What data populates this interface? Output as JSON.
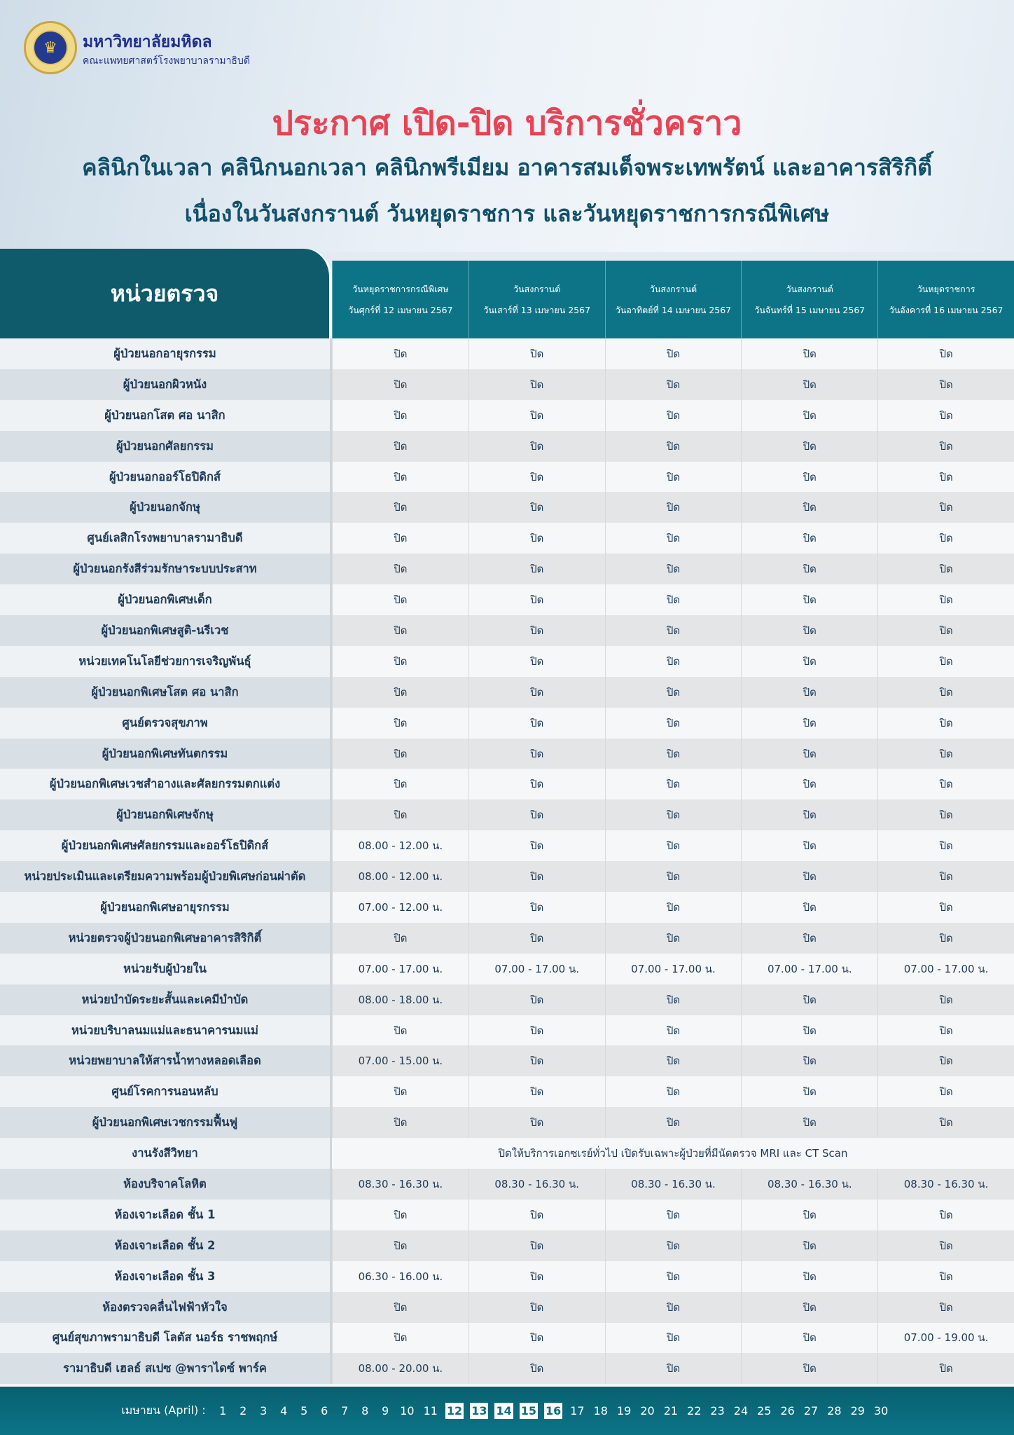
{
  "header": {
    "logo_text": "มหาวิทยาลัยมหิดล",
    "org_name": "มหาวิทยาลัยมหิดล",
    "faculty": "คณะแพทยศาสตร์โรงพยาบาลรามาธิบดี",
    "title": "ประกาศ เปิด-ปิด บริการชั่วคราว",
    "subtitle1": "คลินิกในเวลา คลินิกนอกเวลา คลินิกพรีเมียม อาคารสมเด็จพระเทพรัตน์ และอาคารสิริกิติ์",
    "subtitle2": "เนื่องในวันสงกรานต์ วันหยุดราชการ และวันหยุดราชการกรณีพิเศษ"
  },
  "colors": {
    "title": "#e84354",
    "subtitle": "#12506a",
    "header_dark": "#0f5a6b",
    "header_teal": "#0d7487",
    "footer": "#0b7487"
  },
  "table": {
    "unit_header": "หน่วยตรวจ",
    "columns": [
      {
        "type": "วันหยุดราชการกรณีพิเศษ",
        "date": "วันศุกร์ที่ 12 เมษายน 2567"
      },
      {
        "type": "วันสงกรานต์",
        "date": "วันเสาร์ที่ 13 เมษายน 2567"
      },
      {
        "type": "วันสงกรานต์",
        "date": "วันอาทิตย์ที่ 14 เมษายน 2567"
      },
      {
        "type": "วันสงกรานต์",
        "date": "วันจันทร์ที่ 15 เมษายน 2567"
      },
      {
        "type": "วันหยุดราชการ",
        "date": "วันอังคารที่ 16 เมษายน 2567"
      }
    ],
    "rows": [
      {
        "name": "ผู้ป่วยนอกอายุรกรรม",
        "values": [
          "ปิด",
          "ปิด",
          "ปิด",
          "ปิด",
          "ปิด"
        ]
      },
      {
        "name": "ผู้ป่วยนอกผิวหนัง",
        "values": [
          "ปิด",
          "ปิด",
          "ปิด",
          "ปิด",
          "ปิด"
        ]
      },
      {
        "name": "ผู้ป่วยนอกโสต ศอ นาสิก",
        "values": [
          "ปิด",
          "ปิด",
          "ปิด",
          "ปิด",
          "ปิด"
        ]
      },
      {
        "name": "ผู้ป่วยนอกศัลยกรรม",
        "values": [
          "ปิด",
          "ปิด",
          "ปิด",
          "ปิด",
          "ปิด"
        ]
      },
      {
        "name": "ผู้ป่วยนอกออร์โธปิดิกส์",
        "values": [
          "ปิด",
          "ปิด",
          "ปิด",
          "ปิด",
          "ปิด"
        ]
      },
      {
        "name": "ผู้ป่วยนอกจักษุ",
        "values": [
          "ปิด",
          "ปิด",
          "ปิด",
          "ปิด",
          "ปิด"
        ]
      },
      {
        "name": "ศูนย์เลสิกโรงพยาบาลรามาธิบดี",
        "values": [
          "ปิด",
          "ปิด",
          "ปิด",
          "ปิด",
          "ปิด"
        ]
      },
      {
        "name": "ผู้ป่วยนอกรังสีร่วมรักษาระบบประสาท",
        "values": [
          "ปิด",
          "ปิด",
          "ปิด",
          "ปิด",
          "ปิด"
        ]
      },
      {
        "name": "ผู้ป่วยนอกพิเศษเด็ก",
        "values": [
          "ปิด",
          "ปิด",
          "ปิด",
          "ปิด",
          "ปิด"
        ]
      },
      {
        "name": "ผู้ป่วยนอกพิเศษสูติ-นรีเวช",
        "values": [
          "ปิด",
          "ปิด",
          "ปิด",
          "ปิด",
          "ปิด"
        ]
      },
      {
        "name": "หน่วยเทคโนโลยีช่วยการเจริญพันธุ์",
        "values": [
          "ปิด",
          "ปิด",
          "ปิด",
          "ปิด",
          "ปิด"
        ]
      },
      {
        "name": "ผู้ป่วยนอกพิเศษโสต ศอ นาสิก",
        "values": [
          "ปิด",
          "ปิด",
          "ปิด",
          "ปิด",
          "ปิด"
        ]
      },
      {
        "name": "ศูนย์ตรวจสุขภาพ",
        "values": [
          "ปิด",
          "ปิด",
          "ปิด",
          "ปิด",
          "ปิด"
        ]
      },
      {
        "name": "ผู้ป่วยนอกพิเศษทันตกรรม",
        "values": [
          "ปิด",
          "ปิด",
          "ปิด",
          "ปิด",
          "ปิด"
        ]
      },
      {
        "name": "ผู้ป่วยนอกพิเศษเวชสำอางและศัลยกรรมตกแต่ง",
        "values": [
          "ปิด",
          "ปิด",
          "ปิด",
          "ปิด",
          "ปิด"
        ]
      },
      {
        "name": "ผู้ป่วยนอกพิเศษจักษุ",
        "values": [
          "ปิด",
          "ปิด",
          "ปิด",
          "ปิด",
          "ปิด"
        ]
      },
      {
        "name": "ผู้ป่วยนอกพิเศษศัลยกรรมและออร์โธปิดิกส์",
        "values": [
          "08.00 - 12.00 น.",
          "ปิด",
          "ปิด",
          "ปิด",
          "ปิด"
        ]
      },
      {
        "name": "หน่วยประเมินและเตรียมความพร้อมผู้ป่วยพิเศษก่อนผ่าตัด",
        "values": [
          "08.00 - 12.00 น.",
          "ปิด",
          "ปิด",
          "ปิด",
          "ปิด"
        ]
      },
      {
        "name": "ผู้ป่วยนอกพิเศษอายุรกรรม",
        "values": [
          "07.00 - 12.00 น.",
          "ปิด",
          "ปิด",
          "ปิด",
          "ปิด"
        ]
      },
      {
        "name": "หน่วยตรวจผู้ป่วยนอกพิเศษอาคารสิริกิติ์",
        "values": [
          "ปิด",
          "ปิด",
          "ปิด",
          "ปิด",
          "ปิด"
        ]
      },
      {
        "name": "หน่วยรับผู้ป่วยใน",
        "values": [
          "07.00 - 17.00 น.",
          "07.00 - 17.00 น.",
          "07.00 - 17.00 น.",
          "07.00 - 17.00 น.",
          "07.00 - 17.00 น."
        ]
      },
      {
        "name": "หน่วยบำบัดระยะสั้นและเคมีบำบัด",
        "values": [
          "08.00 - 18.00 น.",
          "ปิด",
          "ปิด",
          "ปิด",
          "ปิด"
        ]
      },
      {
        "name": "หน่วยบริบาลนมแม่และธนาคารนมแม่",
        "values": [
          "ปิด",
          "ปิด",
          "ปิด",
          "ปิด",
          "ปิด"
        ]
      },
      {
        "name": "หน่วยพยาบาลให้สารน้ำทางหลอดเลือด",
        "values": [
          "07.00 - 15.00 น.",
          "ปิด",
          "ปิด",
          "ปิด",
          "ปิด"
        ]
      },
      {
        "name": "ศูนย์โรคการนอนหลับ",
        "values": [
          "ปิด",
          "ปิด",
          "ปิด",
          "ปิด",
          "ปิด"
        ]
      },
      {
        "name": "ผู้ป่วยนอกพิเศษเวชกรรมฟื้นฟู",
        "values": [
          "ปิด",
          "ปิด",
          "ปิด",
          "ปิด",
          "ปิด"
        ]
      },
      {
        "name": "งานรังสีวิทยา",
        "span": "ปิดให้บริการเอกซเรย์ทั่วไป เปิดรับเฉพาะผู้ป่วยที่มีนัดตรวจ MRI และ CT Scan"
      },
      {
        "name": "ห้องบริจาคโลหิต",
        "values": [
          "08.30 - 16.30 น.",
          "08.30 - 16.30 น.",
          "08.30 - 16.30 น.",
          "08.30 - 16.30 น.",
          "08.30 - 16.30 น."
        ]
      },
      {
        "name": "ห้องเจาะเลือด ชั้น 1",
        "values": [
          "ปิด",
          "ปิด",
          "ปิด",
          "ปิด",
          "ปิด"
        ]
      },
      {
        "name": "ห้องเจาะเลือด ชั้น 2",
        "values": [
          "ปิด",
          "ปิด",
          "ปิด",
          "ปิด",
          "ปิด"
        ]
      },
      {
        "name": "ห้องเจาะเลือด ชั้น 3",
        "values": [
          "06.30 - 16.00 น.",
          "ปิด",
          "ปิด",
          "ปิด",
          "ปิด"
        ]
      },
      {
        "name": "ห้องตรวจคลื่นไฟฟ้าหัวใจ",
        "values": [
          "ปิด",
          "ปิด",
          "ปิด",
          "ปิด",
          "ปิด"
        ]
      },
      {
        "name": "ศูนย์สุขภาพรามาธิบดี โลตัส นอร์ธ ราชพฤกษ์",
        "values": [
          "ปิด",
          "ปิด",
          "ปิด",
          "ปิด",
          "07.00 - 19.00 น."
        ]
      },
      {
        "name": "รามาธิบดี เฮลธ์ สเปซ @พาราไดซ์ พาร์ค",
        "values": [
          "08.00 - 20.00 น.",
          "ปิด",
          "ปิด",
          "ปิด",
          "ปิด"
        ]
      }
    ]
  },
  "footer": {
    "label": "เมษายน (April)  :",
    "days": [
      "1",
      "2",
      "3",
      "4",
      "5",
      "6",
      "7",
      "8",
      "9",
      "10",
      "11",
      "12",
      "13",
      "14",
      "15",
      "16",
      "17",
      "18",
      "19",
      "20",
      "21",
      "22",
      "23",
      "24",
      "25",
      "26",
      "27",
      "28",
      "29",
      "30"
    ],
    "highlighted_days": [
      "12",
      "13",
      "14",
      "15",
      "16"
    ]
  }
}
